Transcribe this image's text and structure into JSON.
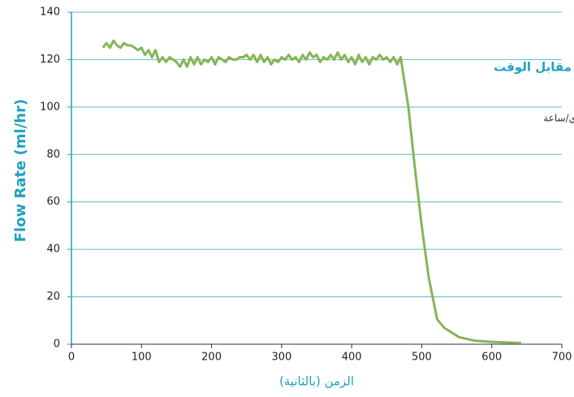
{
  "chart_data": {
    "type": "line",
    "ylabel": "Flow Rate (ml/hr)",
    "xlabel": "الزمن (بالثانية)",
    "annotations": [
      "مقابل الوقت",
      "ي/ساعة"
    ],
    "color": "#86b555",
    "grid": true,
    "xlim": [
      0,
      700
    ],
    "xticks": [
      0,
      100,
      200,
      300,
      400,
      500,
      600,
      700
    ],
    "ylim": [
      0,
      140
    ],
    "yticks": [
      0,
      20,
      40,
      60,
      80,
      100,
      120,
      140
    ],
    "x": [
      45,
      50,
      55,
      60,
      65,
      70,
      75,
      80,
      85,
      90,
      95,
      100,
      105,
      110,
      115,
      120,
      125,
      130,
      135,
      140,
      145,
      150,
      155,
      160,
      165,
      170,
      175,
      180,
      185,
      190,
      195,
      200,
      205,
      210,
      215,
      220,
      225,
      230,
      235,
      240,
      245,
      250,
      255,
      260,
      265,
      270,
      275,
      280,
      285,
      290,
      295,
      300,
      305,
      310,
      315,
      320,
      325,
      330,
      335,
      340,
      345,
      350,
      355,
      360,
      365,
      370,
      375,
      380,
      385,
      390,
      395,
      400,
      405,
      410,
      415,
      420,
      425,
      430,
      435,
      440,
      445,
      450,
      455,
      460,
      465,
      470,
      481,
      490,
      500,
      510,
      522,
      532,
      553,
      575,
      600,
      642
    ],
    "values": [
      125,
      127,
      125,
      128,
      126,
      125,
      127,
      126,
      126,
      125,
      124,
      125,
      122,
      124,
      121,
      124,
      119,
      121,
      119,
      121,
      120,
      119,
      117,
      120,
      117,
      121,
      118,
      121,
      118,
      120,
      119,
      121,
      118,
      121,
      120,
      119,
      121,
      120,
      120,
      121,
      121,
      122,
      120,
      122,
      119,
      122,
      119,
      121,
      118,
      120,
      119,
      121,
      120,
      122,
      120,
      121,
      119,
      122,
      120,
      123,
      121,
      122,
      119,
      121,
      120,
      122,
      120,
      123,
      120,
      122,
      119,
      121,
      118,
      122,
      119,
      121,
      118,
      121,
      120,
      122,
      120,
      121,
      119,
      121,
      118,
      121,
      100,
      75,
      50,
      28,
      10.5,
      7,
      3,
      1.5,
      1,
      0.5
    ]
  }
}
